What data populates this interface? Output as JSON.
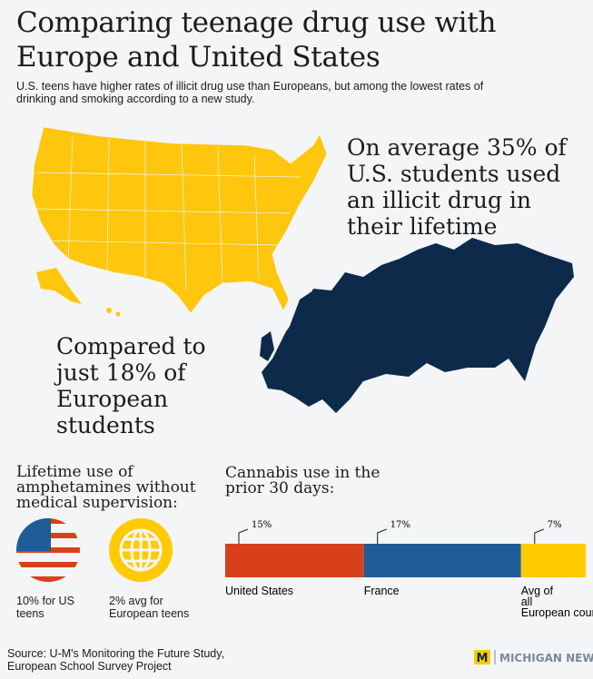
{
  "header": {
    "title": "Comparing teenage drug use with Europe and United States",
    "subtitle": "U.S. teens have higher rates of illicit drug use than Europeans, but among the lowest rates of drinking and smoking according to a new study."
  },
  "us_callout": "On average 35% of U.S. students used an illicit drug in their lifetime",
  "europe_callout": "Compared to just 18% of European students",
  "amphetamines": {
    "title": "Lifetime use of amphetamines without medical supervision:",
    "items": [
      {
        "label": "10% for US teens"
      },
      {
        "label": "2% avg for European teens"
      }
    ]
  },
  "cannabis": {
    "title": "Cannabis use in the prior 30 days:",
    "segments": [
      {
        "name": "United States",
        "value": 15,
        "value_label": "15%",
        "color": "#d8401b"
      },
      {
        "name": "France",
        "value": 17,
        "value_label": "17%",
        "color": "#1f5b96"
      },
      {
        "name": "Avg of all European countries",
        "value": 7,
        "value_label": "7%",
        "color": "#fecb00"
      }
    ]
  },
  "footer": {
    "source": "Source: U-M's Monitoring the Future Study, European School Survey Project",
    "logo_mark": "M",
    "logo_text": "MICHIGAN NEWS"
  }
}
